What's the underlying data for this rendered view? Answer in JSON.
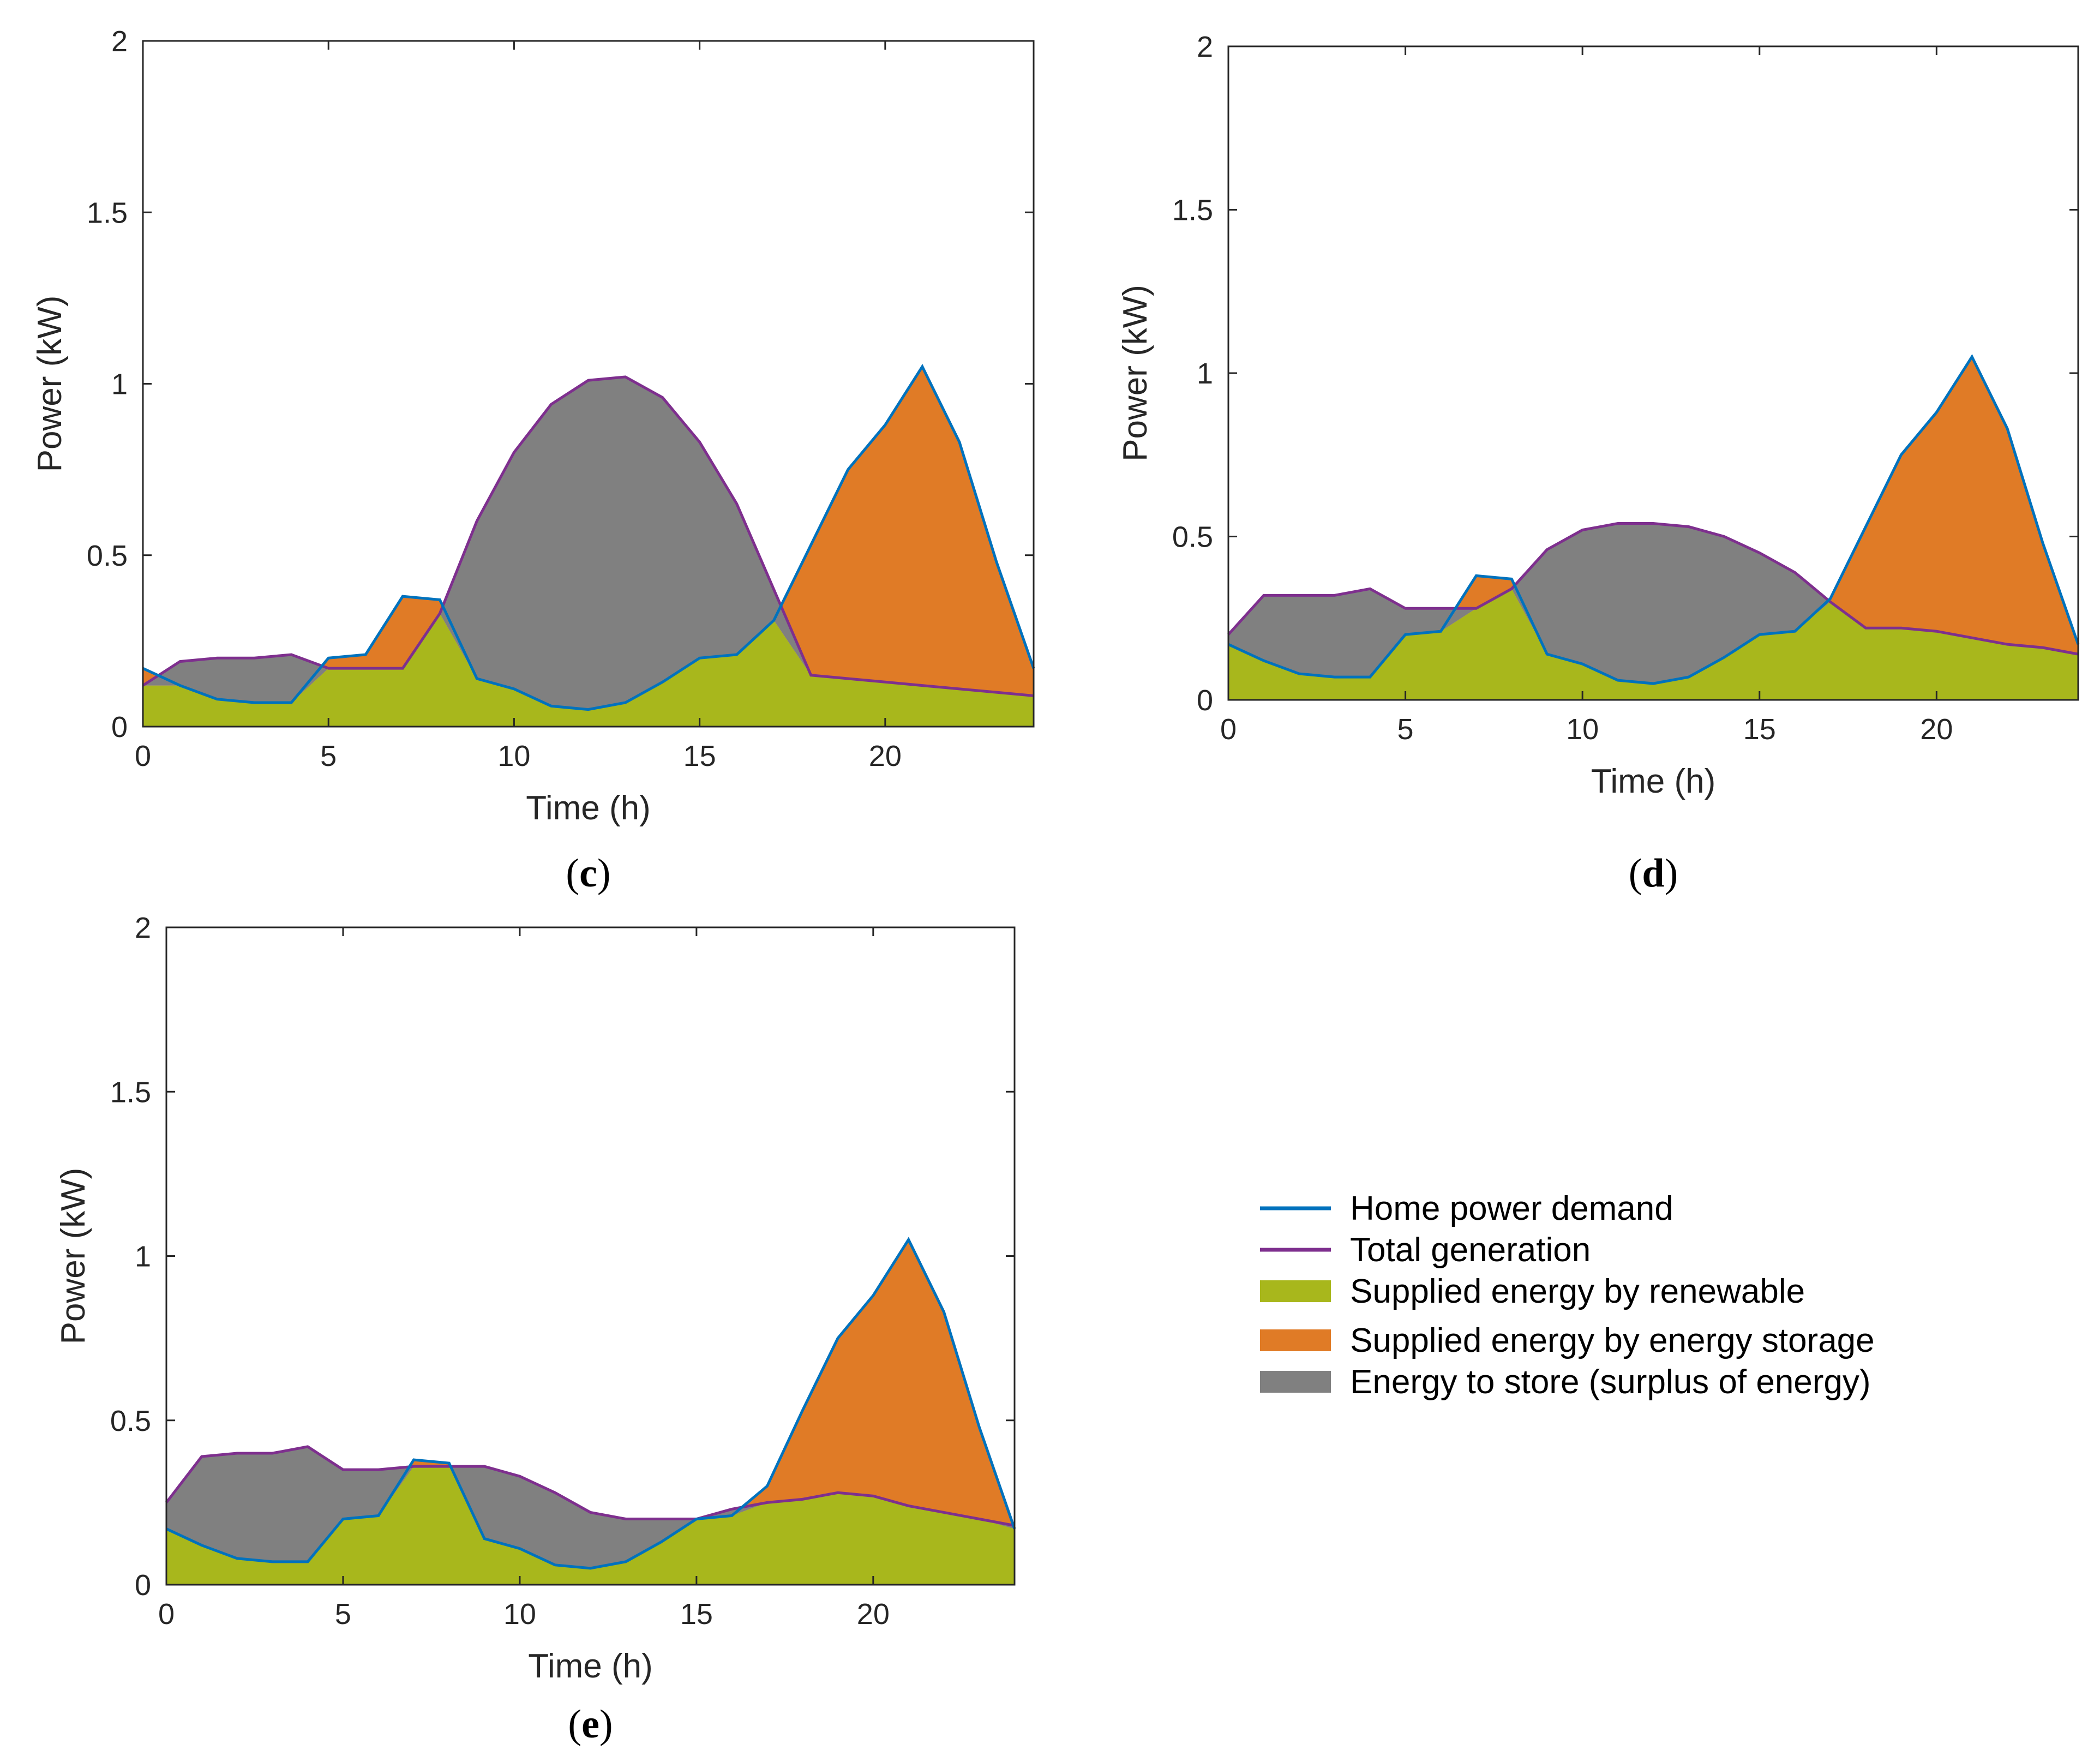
{
  "legend": {
    "entries": [
      {
        "label": "Home power demand",
        "kind": "line",
        "color": "#0072BD"
      },
      {
        "label": "Total generation",
        "kind": "line",
        "color": "#7E2F8E"
      },
      {
        "label": "Supplied energy by renewable",
        "kind": "patch",
        "color": "#A8B71C"
      },
      {
        "label": "Supplied energy by energy storage",
        "kind": "patch",
        "color": "#E07B26"
      },
      {
        "label": "Energy to store (surplus of energy)",
        "kind": "patch",
        "color": "#808080"
      }
    ]
  },
  "colors": {
    "demand_line": "#0072BD",
    "generation_line": "#7E2F8E",
    "renewable_fill": "#A8B71C",
    "storage_fill": "#E07B26",
    "surplus_fill": "#808080"
  },
  "chart_data": [
    {
      "type": "area",
      "panel_letter": "c",
      "xlabel": "Time (h)",
      "ylabel": "Power (kW)",
      "xlim": [
        0,
        24
      ],
      "ylim": [
        0,
        2
      ],
      "xticks": [
        0,
        5,
        10,
        15,
        20
      ],
      "yticks": [
        0,
        0.5,
        1,
        1.5,
        2
      ],
      "ytick_labels": [
        "0",
        "0.5",
        "1",
        "1.5",
        "2"
      ],
      "grid": false,
      "x": [
        0,
        1,
        2,
        3,
        4,
        5,
        6,
        7,
        8,
        9,
        10,
        11,
        12,
        13,
        14,
        15,
        16,
        17,
        18,
        19,
        20,
        21,
        22,
        23,
        24
      ],
      "series": [
        {
          "name": "Home power demand",
          "values": [
            0.17,
            0.12,
            0.08,
            0.07,
            0.07,
            0.2,
            0.21,
            0.38,
            0.37,
            0.14,
            0.11,
            0.06,
            0.05,
            0.07,
            0.13,
            0.2,
            0.21,
            0.31,
            0.53,
            0.75,
            0.88,
            1.05,
            0.83,
            0.48,
            0.17
          ]
        },
        {
          "name": "Total generation",
          "values": [
            0.12,
            0.19,
            0.2,
            0.2,
            0.21,
            0.17,
            0.17,
            0.17,
            0.33,
            0.6,
            0.8,
            0.94,
            1.01,
            1.02,
            0.96,
            0.83,
            0.65,
            0.4,
            0.15,
            0.14,
            0.13,
            0.12,
            0.11,
            0.1,
            0.09
          ]
        }
      ]
    },
    {
      "type": "area",
      "panel_letter": "d",
      "xlabel": "Time (h)",
      "ylabel": "Power (kW)",
      "xlim": [
        0,
        24
      ],
      "ylim": [
        0,
        2
      ],
      "xticks": [
        0,
        5,
        10,
        15,
        20
      ],
      "yticks": [
        0,
        0.5,
        1,
        1.5,
        2
      ],
      "ytick_labels": [
        "0",
        "0.5",
        "1",
        "1.5",
        "2"
      ],
      "grid": false,
      "x": [
        0,
        1,
        2,
        3,
        4,
        5,
        6,
        7,
        8,
        9,
        10,
        11,
        12,
        13,
        14,
        15,
        16,
        17,
        18,
        19,
        20,
        21,
        22,
        23,
        24
      ],
      "series": [
        {
          "name": "Home power demand",
          "values": [
            0.17,
            0.12,
            0.08,
            0.07,
            0.07,
            0.2,
            0.21,
            0.38,
            0.37,
            0.14,
            0.11,
            0.06,
            0.05,
            0.07,
            0.13,
            0.2,
            0.21,
            0.31,
            0.53,
            0.75,
            0.88,
            1.05,
            0.83,
            0.48,
            0.17
          ]
        },
        {
          "name": "Total generation",
          "values": [
            0.2,
            0.32,
            0.32,
            0.32,
            0.34,
            0.28,
            0.28,
            0.28,
            0.34,
            0.46,
            0.52,
            0.54,
            0.54,
            0.53,
            0.5,
            0.45,
            0.39,
            0.3,
            0.22,
            0.22,
            0.21,
            0.19,
            0.17,
            0.16,
            0.14
          ]
        }
      ]
    },
    {
      "type": "area",
      "panel_letter": "e",
      "xlabel": "Time (h)",
      "ylabel": "Power (kW)",
      "xlim": [
        0,
        24
      ],
      "ylim": [
        0,
        2
      ],
      "xticks": [
        0,
        5,
        10,
        15,
        20
      ],
      "yticks": [
        0,
        0.5,
        1,
        1.5,
        2
      ],
      "ytick_labels": [
        "0",
        "0.5",
        "1",
        "1.5",
        "2"
      ],
      "grid": false,
      "x": [
        0,
        1,
        2,
        3,
        4,
        5,
        6,
        7,
        8,
        9,
        10,
        11,
        12,
        13,
        14,
        15,
        16,
        17,
        18,
        19,
        20,
        21,
        22,
        23,
        24
      ],
      "series": [
        {
          "name": "Home power demand",
          "values": [
            0.17,
            0.12,
            0.08,
            0.07,
            0.07,
            0.2,
            0.21,
            0.38,
            0.37,
            0.14,
            0.11,
            0.06,
            0.05,
            0.07,
            0.13,
            0.2,
            0.21,
            0.3,
            0.53,
            0.75,
            0.88,
            1.05,
            0.83,
            0.48,
            0.17
          ]
        },
        {
          "name": "Total generation",
          "values": [
            0.25,
            0.39,
            0.4,
            0.4,
            0.42,
            0.35,
            0.35,
            0.36,
            0.36,
            0.36,
            0.33,
            0.28,
            0.22,
            0.2,
            0.2,
            0.2,
            0.23,
            0.25,
            0.26,
            0.28,
            0.27,
            0.24,
            0.22,
            0.2,
            0.18
          ]
        }
      ]
    }
  ]
}
